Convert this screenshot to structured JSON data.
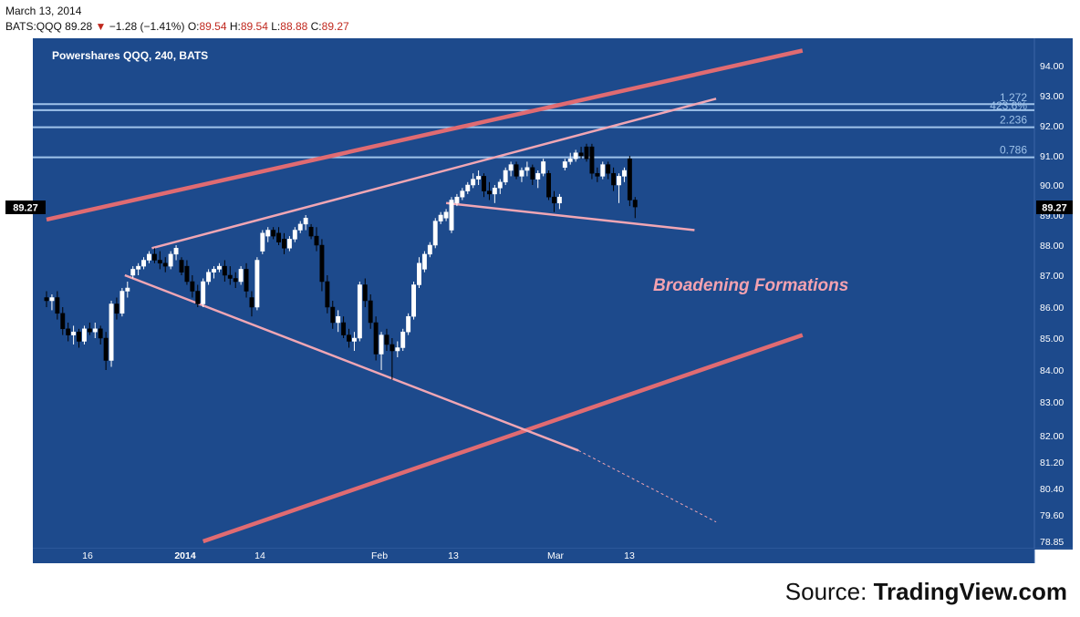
{
  "header": {
    "date": "March 13, 2014",
    "symbol": "BATS:QQQ",
    "last": "89.28",
    "direction_icon": "triangle-down-icon",
    "change": "−1.28 (−1.41%)",
    "open_label": "O:",
    "open": "89.54",
    "high_label": "H:",
    "high": "89.54",
    "low_label": "L:",
    "low": "88.88",
    "close_label": "C:",
    "close": "89.27"
  },
  "source": {
    "prefix": "Source: ",
    "name": "TradingView.com"
  },
  "colors": {
    "background": "#1d4a8c",
    "grid": "#2d5a9b",
    "trend_thick": "#e06b72",
    "trend_thin": "#f0a6b4",
    "fib": "#9fc3ea",
    "annotation": "#f4a2b0",
    "candle_up": "#ffffff",
    "candle_down": "#000000",
    "text_header_value": "#c0281e"
  },
  "chart_data": {
    "type": "candlestick",
    "title": "Powershares QQQ, 240, BATS",
    "annotation": "Broadening Formations",
    "y_axis": {
      "ticks": [
        "94.00",
        "93.00",
        "92.00",
        "91.00",
        "90.00",
        "89.00",
        "88.00",
        "87.00",
        "86.00",
        "85.00",
        "84.00",
        "83.00",
        "82.00",
        "81.20",
        "80.40",
        "79.60",
        "78.85"
      ],
      "last_price_label": "89.27"
    },
    "x_axis": {
      "ticks": [
        "16",
        "2014",
        "14",
        "Feb",
        "13",
        "Mar",
        "13"
      ]
    },
    "fib_levels": [
      {
        "label": "1.272",
        "price": 92.72
      },
      {
        "label": "423.6%",
        "price": 92.52
      },
      {
        "label": "2.236",
        "price": 91.95
      },
      {
        "label": "0.786",
        "price": 90.95
      }
    ],
    "candles": [
      {
        "o": 86.3,
        "h": 86.5,
        "l": 86.0,
        "c": 86.2
      },
      {
        "o": 86.2,
        "h": 86.4,
        "l": 85.9,
        "c": 86.3
      },
      {
        "o": 86.3,
        "h": 86.5,
        "l": 85.6,
        "c": 85.8
      },
      {
        "o": 85.8,
        "h": 86.0,
        "l": 85.1,
        "c": 85.3
      },
      {
        "o": 85.3,
        "h": 85.5,
        "l": 84.9,
        "c": 85.1
      },
      {
        "o": 85.1,
        "h": 85.4,
        "l": 84.8,
        "c": 85.2
      },
      {
        "o": 85.2,
        "h": 85.3,
        "l": 84.7,
        "c": 84.9
      },
      {
        "o": 84.9,
        "h": 85.4,
        "l": 84.8,
        "c": 85.3
      },
      {
        "o": 85.3,
        "h": 85.5,
        "l": 85.1,
        "c": 85.2
      },
      {
        "o": 85.2,
        "h": 85.5,
        "l": 85.0,
        "c": 85.3
      },
      {
        "o": 85.3,
        "h": 85.4,
        "l": 84.8,
        "c": 85.0
      },
      {
        "o": 85.0,
        "h": 85.2,
        "l": 84.0,
        "c": 84.3
      },
      {
        "o": 84.3,
        "h": 86.2,
        "l": 84.1,
        "c": 86.1
      },
      {
        "o": 86.1,
        "h": 86.3,
        "l": 85.6,
        "c": 85.8
      },
      {
        "o": 85.8,
        "h": 86.6,
        "l": 85.7,
        "c": 86.5
      },
      {
        "o": 86.5,
        "h": 86.8,
        "l": 86.3,
        "c": 86.6
      },
      {
        "o": 87.0,
        "h": 87.3,
        "l": 86.9,
        "c": 87.2
      },
      {
        "o": 87.2,
        "h": 87.4,
        "l": 87.0,
        "c": 87.3
      },
      {
        "o": 87.3,
        "h": 87.6,
        "l": 87.2,
        "c": 87.5
      },
      {
        "o": 87.5,
        "h": 87.8,
        "l": 87.4,
        "c": 87.7
      },
      {
        "o": 87.7,
        "h": 87.9,
        "l": 87.4,
        "c": 87.5
      },
      {
        "o": 87.5,
        "h": 87.8,
        "l": 87.2,
        "c": 87.4
      },
      {
        "o": 87.4,
        "h": 87.6,
        "l": 87.1,
        "c": 87.3
      },
      {
        "o": 87.3,
        "h": 87.8,
        "l": 87.2,
        "c": 87.7
      },
      {
        "o": 87.7,
        "h": 88.0,
        "l": 87.5,
        "c": 87.9
      },
      {
        "o": 87.5,
        "h": 87.6,
        "l": 87.0,
        "c": 87.1
      },
      {
        "o": 87.3,
        "h": 87.5,
        "l": 86.7,
        "c": 86.8
      },
      {
        "o": 86.8,
        "h": 87.0,
        "l": 86.3,
        "c": 86.5
      },
      {
        "o": 86.5,
        "h": 86.7,
        "l": 86.0,
        "c": 86.1
      },
      {
        "o": 86.1,
        "h": 86.9,
        "l": 86.0,
        "c": 86.8
      },
      {
        "o": 86.8,
        "h": 87.2,
        "l": 86.7,
        "c": 87.1
      },
      {
        "o": 87.1,
        "h": 87.3,
        "l": 86.9,
        "c": 87.2
      },
      {
        "o": 87.2,
        "h": 87.4,
        "l": 87.1,
        "c": 87.3
      },
      {
        "o": 87.3,
        "h": 87.5,
        "l": 86.8,
        "c": 87.0
      },
      {
        "o": 87.0,
        "h": 87.3,
        "l": 86.7,
        "c": 86.9
      },
      {
        "o": 86.9,
        "h": 87.1,
        "l": 86.6,
        "c": 86.8
      },
      {
        "o": 86.8,
        "h": 87.3,
        "l": 86.7,
        "c": 87.2
      },
      {
        "o": 87.2,
        "h": 87.4,
        "l": 86.3,
        "c": 86.5
      },
      {
        "o": 86.3,
        "h": 86.5,
        "l": 85.7,
        "c": 86.0
      },
      {
        "o": 86.0,
        "h": 87.6,
        "l": 85.9,
        "c": 87.5
      },
      {
        "o": 87.8,
        "h": 88.5,
        "l": 87.7,
        "c": 88.4
      },
      {
        "o": 88.3,
        "h": 88.6,
        "l": 88.1,
        "c": 88.5
      },
      {
        "o": 88.5,
        "h": 88.6,
        "l": 88.2,
        "c": 88.3
      },
      {
        "o": 88.4,
        "h": 88.6,
        "l": 88.0,
        "c": 88.1
      },
      {
        "o": 88.2,
        "h": 88.4,
        "l": 87.7,
        "c": 87.9
      },
      {
        "o": 87.9,
        "h": 88.3,
        "l": 87.8,
        "c": 88.2
      },
      {
        "o": 88.2,
        "h": 88.6,
        "l": 88.1,
        "c": 88.5
      },
      {
        "o": 88.5,
        "h": 88.8,
        "l": 88.4,
        "c": 88.7
      },
      {
        "o": 88.7,
        "h": 89.0,
        "l": 88.5,
        "c": 88.9
      },
      {
        "o": 88.6,
        "h": 88.7,
        "l": 88.2,
        "c": 88.3
      },
      {
        "o": 88.3,
        "h": 88.6,
        "l": 87.8,
        "c": 88.0
      },
      {
        "o": 88.0,
        "h": 88.2,
        "l": 86.5,
        "c": 86.8
      },
      {
        "o": 86.8,
        "h": 87.0,
        "l": 85.8,
        "c": 86.0
      },
      {
        "o": 86.0,
        "h": 86.2,
        "l": 85.3,
        "c": 85.5
      },
      {
        "o": 85.5,
        "h": 85.9,
        "l": 85.2,
        "c": 85.7
      },
      {
        "o": 85.5,
        "h": 85.7,
        "l": 85.0,
        "c": 85.1
      },
      {
        "o": 85.1,
        "h": 85.3,
        "l": 84.7,
        "c": 84.9
      },
      {
        "o": 84.9,
        "h": 85.2,
        "l": 84.6,
        "c": 85.0
      },
      {
        "o": 85.0,
        "h": 86.8,
        "l": 84.9,
        "c": 86.7
      },
      {
        "o": 86.7,
        "h": 86.9,
        "l": 86.0,
        "c": 86.2
      },
      {
        "o": 86.2,
        "h": 86.4,
        "l": 85.3,
        "c": 85.5
      },
      {
        "o": 85.5,
        "h": 85.7,
        "l": 84.3,
        "c": 84.5
      },
      {
        "o": 84.5,
        "h": 85.2,
        "l": 84.0,
        "c": 85.1
      },
      {
        "o": 85.1,
        "h": 85.3,
        "l": 84.6,
        "c": 84.8
      },
      {
        "o": 84.8,
        "h": 85.0,
        "l": 83.7,
        "c": 84.6
      },
      {
        "o": 84.6,
        "h": 84.9,
        "l": 84.4,
        "c": 84.7
      },
      {
        "o": 84.7,
        "h": 85.3,
        "l": 84.6,
        "c": 85.2
      },
      {
        "o": 85.2,
        "h": 85.8,
        "l": 85.1,
        "c": 85.7
      },
      {
        "o": 85.7,
        "h": 86.8,
        "l": 85.6,
        "c": 86.7
      },
      {
        "o": 86.7,
        "h": 87.6,
        "l": 86.6,
        "c": 87.4
      },
      {
        "o": 87.2,
        "h": 87.8,
        "l": 87.1,
        "c": 87.7
      },
      {
        "o": 87.7,
        "h": 88.1,
        "l": 87.6,
        "c": 88.0
      },
      {
        "o": 88.0,
        "h": 88.9,
        "l": 87.9,
        "c": 88.8
      },
      {
        "o": 88.8,
        "h": 89.1,
        "l": 88.7,
        "c": 89.0
      },
      {
        "o": 88.9,
        "h": 89.2,
        "l": 88.8,
        "c": 89.1
      },
      {
        "o": 88.5,
        "h": 89.6,
        "l": 88.4,
        "c": 89.5
      },
      {
        "o": 89.4,
        "h": 89.7,
        "l": 89.3,
        "c": 89.6
      },
      {
        "o": 89.6,
        "h": 89.9,
        "l": 89.5,
        "c": 89.8
      },
      {
        "o": 89.8,
        "h": 90.1,
        "l": 89.7,
        "c": 90.0
      },
      {
        "o": 90.0,
        "h": 90.4,
        "l": 89.9,
        "c": 90.2
      },
      {
        "o": 90.2,
        "h": 90.5,
        "l": 90.0,
        "c": 90.3
      },
      {
        "o": 90.3,
        "h": 90.4,
        "l": 89.6,
        "c": 89.8
      },
      {
        "o": 89.8,
        "h": 90.1,
        "l": 89.5,
        "c": 89.7
      },
      {
        "o": 89.7,
        "h": 90.0,
        "l": 89.4,
        "c": 89.9
      },
      {
        "o": 89.9,
        "h": 90.2,
        "l": 89.7,
        "c": 90.1
      },
      {
        "o": 90.1,
        "h": 90.6,
        "l": 90.0,
        "c": 90.5
      },
      {
        "o": 90.5,
        "h": 90.8,
        "l": 90.3,
        "c": 90.7
      },
      {
        "o": 90.7,
        "h": 90.8,
        "l": 90.2,
        "c": 90.3
      },
      {
        "o": 90.3,
        "h": 90.6,
        "l": 90.1,
        "c": 90.5
      },
      {
        "o": 90.5,
        "h": 90.8,
        "l": 90.3,
        "c": 90.6
      },
      {
        "o": 90.6,
        "h": 90.7,
        "l": 90.0,
        "c": 90.2
      },
      {
        "o": 90.2,
        "h": 90.5,
        "l": 89.9,
        "c": 90.4
      },
      {
        "o": 90.4,
        "h": 90.9,
        "l": 90.3,
        "c": 90.8
      },
      {
        "o": 90.4,
        "h": 90.5,
        "l": 89.5,
        "c": 89.6
      },
      {
        "o": 89.6,
        "h": 89.8,
        "l": 89.1,
        "c": 89.4
      },
      {
        "o": 89.4,
        "h": 89.7,
        "l": 89.2,
        "c": 89.6
      },
      {
        "o": 90.6,
        "h": 90.9,
        "l": 90.5,
        "c": 90.8
      },
      {
        "o": 90.8,
        "h": 91.1,
        "l": 90.7,
        "c": 90.9
      },
      {
        "o": 90.9,
        "h": 91.2,
        "l": 90.8,
        "c": 91.1
      },
      {
        "o": 91.1,
        "h": 91.3,
        "l": 90.9,
        "c": 91.0
      },
      {
        "o": 91.3,
        "h": 91.4,
        "l": 90.8,
        "c": 90.9
      },
      {
        "o": 91.3,
        "h": 91.4,
        "l": 90.2,
        "c": 90.4
      },
      {
        "o": 90.4,
        "h": 90.6,
        "l": 90.1,
        "c": 90.3
      },
      {
        "o": 90.3,
        "h": 90.8,
        "l": 90.2,
        "c": 90.7
      },
      {
        "o": 90.7,
        "h": 90.8,
        "l": 90.2,
        "c": 90.4
      },
      {
        "o": 90.4,
        "h": 90.6,
        "l": 89.8,
        "c": 90.0
      },
      {
        "o": 90.0,
        "h": 90.4,
        "l": 89.4,
        "c": 90.3
      },
      {
        "o": 90.3,
        "h": 90.6,
        "l": 90.1,
        "c": 90.5
      },
      {
        "o": 90.9,
        "h": 91.0,
        "l": 89.3,
        "c": 89.5
      },
      {
        "o": 89.5,
        "h": 89.6,
        "l": 88.9,
        "c": 89.27
      }
    ],
    "trend_lines": [
      {
        "name": "upper-resistance",
        "style": "thick",
        "x0": 0,
        "p0": 88.85,
        "x1": 140,
        "p1": 94.5
      },
      {
        "name": "lower-support",
        "style": "thick",
        "x0": 29,
        "p0": 78.85,
        "x1": 140,
        "p1": 85.1
      },
      {
        "name": "broadening-top",
        "style": "thin",
        "x0": 19.5,
        "p0": 87.9,
        "x1": 124,
        "p1": 92.9
      },
      {
        "name": "broadening-bottom",
        "style": "thin",
        "x0": 14.5,
        "p0": 87.0,
        "x1": 98.5,
        "p1": 81.55
      },
      {
        "name": "broadening-bottom-extension",
        "style": "dashed",
        "x0": 98.5,
        "p0": 81.55,
        "x1": 124,
        "p1": 79.4
      },
      {
        "name": "short-support",
        "style": "thin",
        "x0": 74,
        "p0": 89.4,
        "x1": 120,
        "p1": 88.5
      }
    ]
  }
}
